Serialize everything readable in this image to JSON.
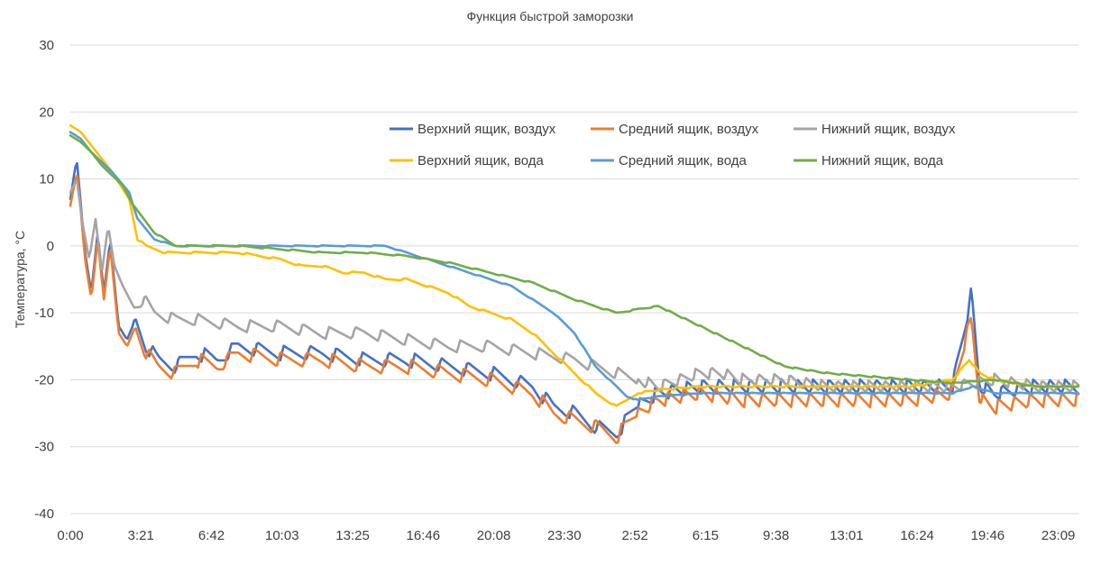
{
  "chart_data": {
    "type": "line",
    "title": "Функция быстрой заморозки",
    "xlabel": "",
    "ylabel": "Температура, °C",
    "ylim": [
      -40,
      30
    ],
    "y_ticks": [
      "30",
      "20",
      "10",
      "0",
      "-10",
      "-20",
      "-30",
      "-40"
    ],
    "y_tick_values": [
      30,
      20,
      10,
      0,
      -10,
      -20,
      -30,
      -40
    ],
    "x_tick_labels": [
      "0:00",
      "3:21",
      "6:42",
      "10:03",
      "13:25",
      "16:46",
      "20:08",
      "23:30",
      "2:52",
      "6:15",
      "9:38",
      "13:01",
      "16:24",
      "19:46",
      "23:09"
    ],
    "x_range_hours": [
      0,
      48
    ],
    "x_tick_step_hours": 3.36,
    "grid": true,
    "legend_position": "top-right",
    "series": [
      {
        "name": "Верхний ящик, воздух",
        "color": "#4472C4",
        "x": [
          0,
          0.3,
          0.45,
          0.7,
          1.0,
          1.3,
          1.6,
          1.9,
          2.3,
          2.7,
          3.1,
          3.6,
          4.2,
          5.0,
          6.0,
          7.0,
          8.0,
          10.0,
          12.0,
          14.0,
          16.0,
          18.0,
          20.0,
          22.0,
          23.0,
          24.0,
          25.0,
          26.0,
          27.0,
          28.0,
          30.0,
          32.0,
          34.0,
          36.0,
          38.0,
          40.0,
          42.0,
          42.6,
          42.9,
          43.3,
          44.0,
          46.0,
          48.0
        ],
        "values": [
          7,
          13,
          8,
          -1,
          -7,
          2,
          -7,
          1,
          -12,
          -14,
          -11,
          -15,
          -17,
          -18,
          -16,
          -17,
          -15,
          -16,
          -16,
          -17,
          -17,
          -18,
          -19,
          -21,
          -24,
          -25,
          -27,
          -28,
          -24,
          -22,
          -21,
          -21,
          -21,
          -21,
          -21,
          -21,
          -21,
          -12,
          -7,
          -21,
          -22,
          -21,
          -21
        ]
      },
      {
        "name": "Средний ящик, воздух",
        "color": "#ED7D31",
        "x": [
          0,
          0.3,
          0.45,
          0.7,
          1.0,
          1.3,
          1.6,
          1.9,
          2.3,
          2.7,
          3.1,
          3.6,
          4.2,
          5.0,
          6.0,
          7.0,
          8.0,
          10.0,
          12.0,
          14.0,
          16.0,
          18.0,
          20.0,
          22.0,
          23.0,
          24.0,
          25.0,
          26.0,
          27.0,
          28.0,
          30.0,
          32.0,
          34.0,
          36.0,
          38.0,
          40.0,
          42.0,
          42.6,
          42.9,
          43.3,
          44.0,
          46.0,
          48.0
        ],
        "values": [
          6,
          11,
          7,
          -2,
          -8,
          1,
          -8,
          0,
          -13,
          -15,
          -12,
          -16,
          -18,
          -19,
          -17,
          -18,
          -16,
          -17,
          -17,
          -18,
          -18,
          -19,
          -20,
          -22,
          -25,
          -26,
          -27,
          -28.5,
          -25,
          -23,
          -22,
          -23,
          -23,
          -23,
          -23,
          -23,
          -22,
          -14,
          -11,
          -23,
          -24,
          -23,
          -23
        ]
      },
      {
        "name": "Нижний ящик, воздух",
        "color": "#A5A5A5",
        "x": [
          0,
          0.3,
          0.6,
          0.9,
          1.2,
          1.5,
          1.8,
          2.1,
          2.5,
          3.0,
          3.5,
          4.0,
          5.0,
          6.0,
          8.0,
          10.0,
          12.0,
          14.0,
          16.0,
          18.0,
          20.0,
          22.0,
          24.0,
          25.0,
          26.0,
          27.0,
          28.0,
          29.0,
          30.0,
          31.0,
          32.0,
          34.0,
          36.0,
          38.0,
          40.0,
          42.0,
          44.0,
          46.0,
          48.0
        ],
        "values": [
          8,
          10,
          3,
          -2,
          4,
          -4,
          3,
          -3,
          -6,
          -9,
          -8,
          -10,
          -11,
          -11,
          -12,
          -12,
          -13,
          -13,
          -14,
          -15,
          -15,
          -16,
          -17,
          -18,
          -19,
          -20,
          -21,
          -20,
          -19,
          -19,
          -20,
          -20,
          -21,
          -21,
          -21,
          -21,
          -20,
          -21,
          -21
        ]
      },
      {
        "name": "Верхний ящик, вода",
        "color": "#FFC000",
        "x": [
          0,
          0.5,
          1.0,
          2.0,
          2.8,
          3.0,
          3.2,
          3.6,
          4.5,
          6.0,
          8.0,
          10.0,
          11.0,
          12.0,
          13.0,
          14.0,
          15.0,
          16.0,
          17.0,
          18.0,
          19.0,
          20.0,
          21.0,
          22.0,
          23.0,
          24.0,
          25.0,
          26.0,
          27.0,
          28.0,
          30.0,
          32.0,
          34.0,
          36.0,
          38.0,
          40.0,
          42.0,
          42.8,
          43.3,
          44.0,
          46.0,
          48.0
        ],
        "values": [
          18,
          17,
          15,
          11,
          7,
          4,
          1,
          0,
          -1,
          -1,
          -1,
          -2,
          -3,
          -3,
          -4,
          -4,
          -5,
          -5,
          -6,
          -7,
          -9,
          -10,
          -11,
          -13,
          -16,
          -19,
          -22,
          -24,
          -22,
          -21.5,
          -21,
          -21,
          -21,
          -21,
          -21,
          -21,
          -20,
          -17,
          -19,
          -20,
          -21,
          -21
        ]
      },
      {
        "name": "Средний ящик, вода",
        "color": "#5B9BD5",
        "x": [
          0,
          0.5,
          1.0,
          2.0,
          2.8,
          3.2,
          4.0,
          5.0,
          6.0,
          8.0,
          10.0,
          12.0,
          14.0,
          15.0,
          16.0,
          17.0,
          18.0,
          19.0,
          20.0,
          21.0,
          22.0,
          23.0,
          24.0,
          25.0,
          26.0,
          26.5,
          27.0,
          28.0,
          30.0,
          32.0,
          34.0,
          36.0,
          38.0,
          40.0,
          42.0,
          43.0,
          44.0,
          46.0,
          48.0
        ],
        "values": [
          17,
          16,
          14,
          11,
          8,
          4,
          1,
          0,
          0,
          0,
          0,
          0,
          0,
          0,
          -1,
          -2,
          -3,
          -4,
          -5,
          -6,
          -8,
          -10,
          -13,
          -18,
          -21,
          -22.5,
          -23,
          -22.5,
          -22,
          -22,
          -22,
          -22,
          -22,
          -22,
          -22,
          -21,
          -22,
          -22,
          -22
        ]
      },
      {
        "name": "Нижний ящик, вода",
        "color": "#70AD47",
        "x": [
          0,
          0.5,
          1.0,
          1.5,
          2.0,
          2.5,
          3.0,
          3.5,
          4.0,
          5.0,
          6.0,
          8.0,
          10.0,
          12.0,
          14.0,
          16.0,
          18.0,
          20.0,
          22.0,
          24.0,
          26.0,
          28.0,
          30.0,
          32.0,
          34.0,
          36.0,
          38.0,
          40.0,
          42.0,
          44.0,
          46.0,
          48.0
        ],
        "values": [
          16.5,
          15.5,
          14,
          12,
          10.5,
          9,
          6,
          4,
          2,
          0,
          0,
          0,
          -0.5,
          -1,
          -1,
          -1.5,
          -2.5,
          -4,
          -5.5,
          -8,
          -10,
          -9,
          -12,
          -15,
          -18,
          -19,
          -19.5,
          -20,
          -20.5,
          -20,
          -21,
          -21
        ]
      }
    ]
  }
}
